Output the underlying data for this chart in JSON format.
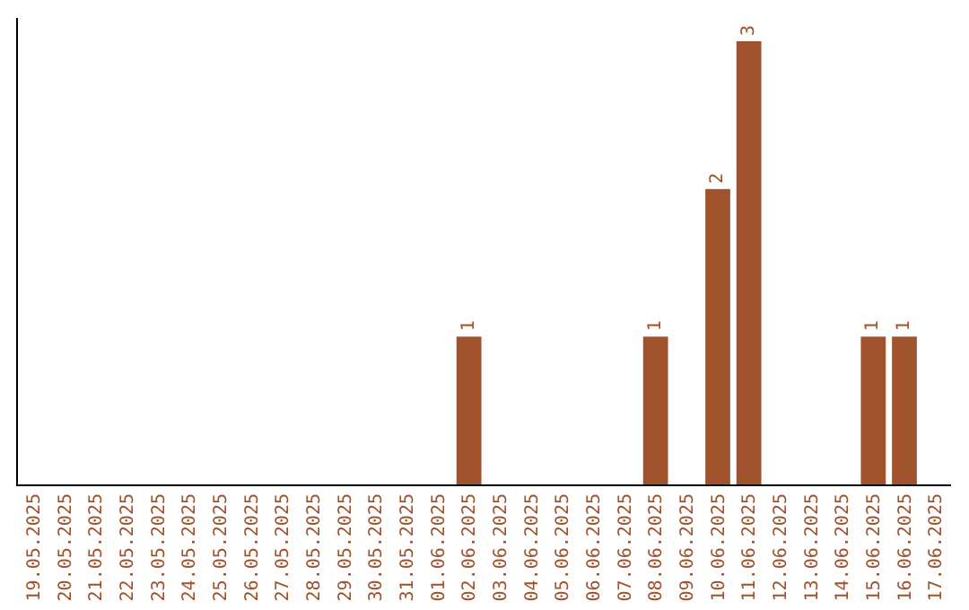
{
  "chart_data": {
    "type": "bar",
    "categories": [
      "19.05.2025",
      "20.05.2025",
      "21.05.2025",
      "22.05.2025",
      "23.05.2025",
      "24.05.2025",
      "25.05.2025",
      "26.05.2025",
      "27.05.2025",
      "28.05.2025",
      "29.05.2025",
      "30.05.2025",
      "31.05.2025",
      "01.06.2025",
      "02.06.2025",
      "03.06.2025",
      "04.06.2025",
      "05.06.2025",
      "06.06.2025",
      "07.06.2025",
      "08.06.2025",
      "09.06.2025",
      "10.06.2025",
      "11.06.2025",
      "12.06.2025",
      "13.06.2025",
      "14.06.2025",
      "15.06.2025",
      "16.06.2025",
      "17.06.2025"
    ],
    "values": [
      null,
      null,
      null,
      null,
      null,
      null,
      null,
      null,
      null,
      null,
      null,
      null,
      null,
      null,
      1,
      null,
      null,
      null,
      null,
      null,
      1,
      null,
      2,
      3,
      null,
      null,
      null,
      1,
      1,
      null
    ],
    "data_labels": true,
    "color": "#a0522d",
    "tick_labels": "x",
    "grid": false,
    "legend": false
  }
}
